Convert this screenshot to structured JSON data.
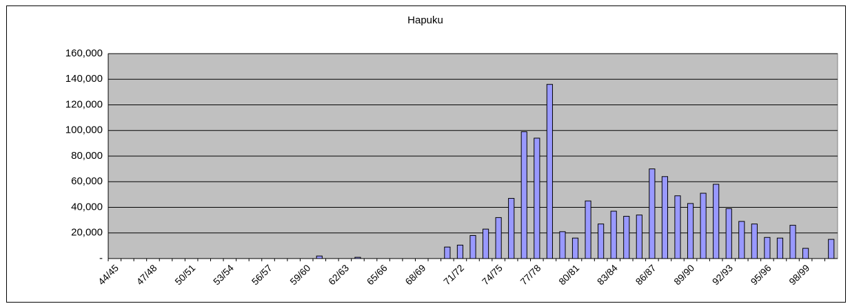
{
  "chart_data": {
    "type": "bar",
    "title": "Hapuku",
    "categories": [
      "44/45",
      null,
      null,
      "47/48",
      null,
      null,
      "50/51",
      null,
      null,
      "53/54",
      null,
      null,
      "56/57",
      null,
      null,
      "59/60",
      null,
      null,
      "62/63",
      null,
      null,
      "65/66",
      null,
      null,
      "68/69",
      null,
      null,
      "71/72",
      null,
      null,
      "74/75",
      null,
      null,
      "77/78",
      null,
      null,
      "80/81",
      null,
      null,
      "83/84",
      null,
      null,
      "86/87",
      null,
      null,
      "89/90",
      null,
      null,
      "92/93",
      null,
      null,
      "95/96",
      null,
      null,
      "98/99",
      null,
      null
    ],
    "values": [
      null,
      null,
      null,
      null,
      null,
      null,
      null,
      null,
      null,
      null,
      null,
      null,
      null,
      null,
      null,
      null,
      2000,
      null,
      null,
      1000,
      null,
      null,
      null,
      null,
      null,
      null,
      9000,
      10500,
      18000,
      23000,
      32000,
      47000,
      99000,
      94000,
      136000,
      21000,
      16000,
      45000,
      27000,
      37000,
      33000,
      34000,
      70000,
      64000,
      49000,
      43000,
      51000,
      58000,
      39000,
      29000,
      27000,
      16500,
      16000,
      26000,
      8000,
      null,
      15000
    ],
    "color": "#9999ff",
    "ylim": [
      0,
      160000
    ],
    "yticks": [
      {
        "value": 0,
        "label": "-"
      },
      {
        "value": 20000,
        "label": "20,000"
      },
      {
        "value": 40000,
        "label": "40,000"
      },
      {
        "value": 60000,
        "label": "60,000"
      },
      {
        "value": 80000,
        "label": "80,000"
      },
      {
        "value": 100000,
        "label": "100,000"
      },
      {
        "value": 120000,
        "label": "120,000"
      },
      {
        "value": 140000,
        "label": "140,000"
      },
      {
        "value": 160000,
        "label": "160,000"
      }
    ],
    "grid": true
  }
}
